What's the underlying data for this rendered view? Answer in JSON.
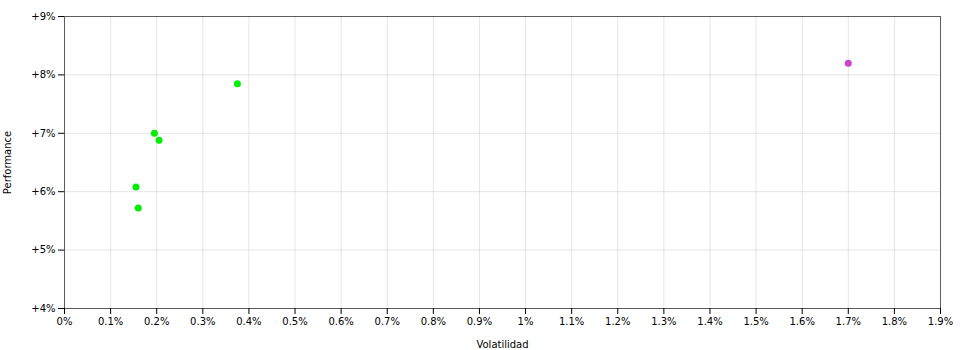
{
  "chart_data": {
    "type": "scatter",
    "xlabel": "Volatilidad",
    "ylabel": "Performance",
    "xlim": [
      0.0,
      0.019
    ],
    "ylim": [
      0.04,
      0.09
    ],
    "xticks": [
      {
        "value": 0.0,
        "label": "0%"
      },
      {
        "value": 0.001,
        "label": "0.1%"
      },
      {
        "value": 0.002,
        "label": "0.2%"
      },
      {
        "value": 0.003,
        "label": "0.3%"
      },
      {
        "value": 0.004,
        "label": "0.4%"
      },
      {
        "value": 0.005,
        "label": "0.5%"
      },
      {
        "value": 0.006,
        "label": "0.6%"
      },
      {
        "value": 0.007,
        "label": "0.7%"
      },
      {
        "value": 0.008,
        "label": "0.8%"
      },
      {
        "value": 0.009,
        "label": "0.9%"
      },
      {
        "value": 0.01,
        "label": "1%"
      },
      {
        "value": 0.011,
        "label": "1.1%"
      },
      {
        "value": 0.012,
        "label": "1.2%"
      },
      {
        "value": 0.013,
        "label": "1.3%"
      },
      {
        "value": 0.014,
        "label": "1.4%"
      },
      {
        "value": 0.015,
        "label": "1.5%"
      },
      {
        "value": 0.016,
        "label": "1.6%"
      },
      {
        "value": 0.017,
        "label": "1.7%"
      },
      {
        "value": 0.018,
        "label": "1.8%"
      },
      {
        "value": 0.019,
        "label": "1.9%"
      }
    ],
    "yticks": [
      {
        "value": 0.04,
        "label": "+4%"
      },
      {
        "value": 0.05,
        "label": "+5%"
      },
      {
        "value": 0.06,
        "label": "+6%"
      },
      {
        "value": 0.07,
        "label": "+7%"
      },
      {
        "value": 0.08,
        "label": "+8%"
      },
      {
        "value": 0.09,
        "label": "+9%"
      }
    ],
    "grid": true,
    "series": [
      {
        "color": "#00ee00",
        "x": [
          0.00375,
          0.00195,
          0.00205,
          0.00155,
          0.0016
        ],
        "values": [
          0.0785,
          0.07,
          0.0688,
          0.0608,
          0.0572
        ]
      },
      {
        "color": "#cc44cc",
        "x": [
          0.017
        ],
        "values": [
          0.082
        ]
      }
    ]
  }
}
